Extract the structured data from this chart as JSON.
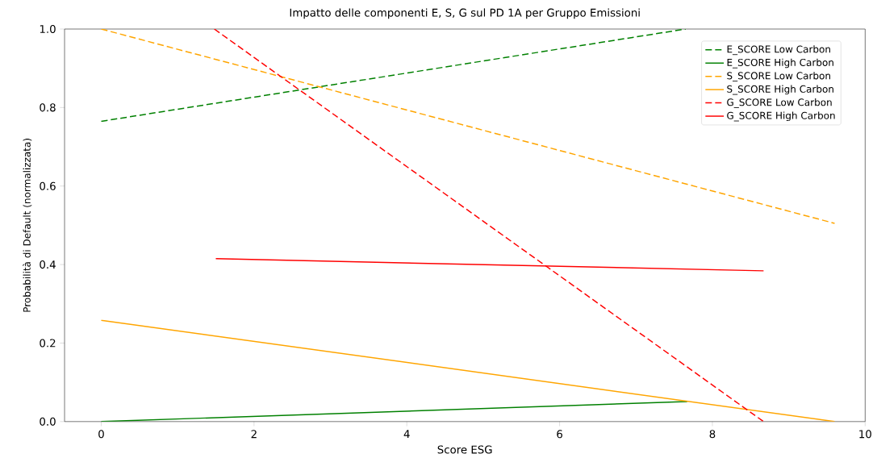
{
  "chart_data": {
    "type": "line",
    "title": "Impatto delle componenti E, S, G sul PD 1A per Gruppo Emissioni",
    "xlabel": "Score ESG",
    "ylabel": "Probabilità di Default (normalizzata)",
    "xlim": [
      -0.48,
      10
    ],
    "ylim": [
      0,
      1
    ],
    "xticks": [
      0,
      2,
      4,
      6,
      8,
      10
    ],
    "yticks": [
      {
        "value": 0,
        "label": "0.0"
      },
      {
        "value": 0.2,
        "label": "0.2"
      },
      {
        "value": 0.4,
        "label": "0.4"
      },
      {
        "value": 0.6,
        "label": "0.6"
      },
      {
        "value": 0.8,
        "label": "0.8"
      },
      {
        "value": 1,
        "label": "1.0"
      }
    ],
    "legend": "top right",
    "marker": "none",
    "series": [
      {
        "name": "E_SCORE Low Carbon",
        "color": "#008000",
        "line_style": "dashed",
        "x": [
          0,
          7.65
        ],
        "values": [
          0.765,
          1.0
        ]
      },
      {
        "name": "E_SCORE High Carbon",
        "color": "#008000",
        "line_style": "solid",
        "x": [
          0,
          7.67
        ],
        "values": [
          0,
          0.051
        ]
      },
      {
        "name": "S_SCORE Low Carbon",
        "color": "#ffa500",
        "line_style": "dashed",
        "x": [
          0,
          9.6
        ],
        "values": [
          1.0,
          0.505
        ]
      },
      {
        "name": "S_SCORE High Carbon",
        "color": "#ffa500",
        "line_style": "solid",
        "x": [
          0,
          9.6
        ],
        "values": [
          0.258,
          0
        ]
      },
      {
        "name": "G_SCORE Low Carbon",
        "color": "#ff0000",
        "line_style": "dashed",
        "x": [
          1.48,
          8.67
        ],
        "values": [
          1.0,
          0
        ]
      },
      {
        "name": "G_SCORE High Carbon",
        "color": "#ff0000",
        "line_style": "solid",
        "x": [
          1.5,
          8.67
        ],
        "values": [
          0.415,
          0.384
        ]
      }
    ]
  }
}
